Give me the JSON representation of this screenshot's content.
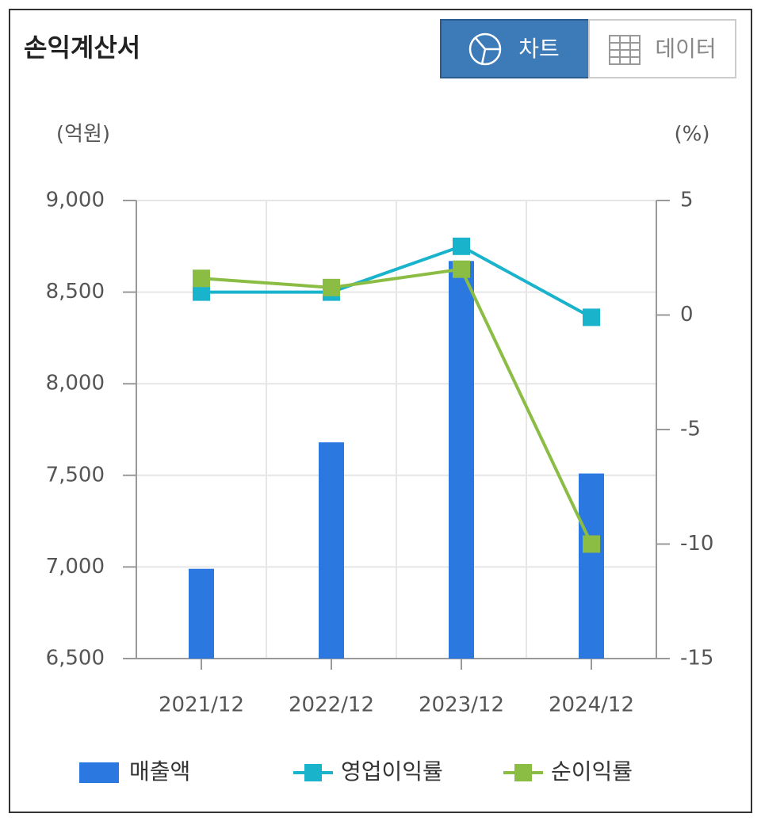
{
  "title": "손익계산서",
  "tabs": [
    "차트",
    "데이터"
  ],
  "chart_data": {
    "type": "bar",
    "y_unit": "(억원)",
    "y2_unit": "(%)",
    "categories": [
      "2021/12",
      "2022/12",
      "2023/12",
      "2024/12"
    ],
    "series": [
      {
        "name": "매출액",
        "type": "bar",
        "color": "#2a78e0",
        "values": [
          6990,
          7680,
          8670,
          7510
        ]
      },
      {
        "name": "영업이익률",
        "type": "line",
        "axis": "y2",
        "color": "#1ab3cc",
        "values": [
          1.0,
          1.0,
          3.0,
          -0.1
        ]
      },
      {
        "name": "순이익률",
        "type": "line",
        "axis": "y2",
        "color": "#8bbd45",
        "values": [
          1.6,
          1.2,
          2.0,
          -10.0
        ]
      }
    ],
    "ylim": [
      6500,
      9000
    ],
    "yticks": [
      {
        "value": 6500,
        "label": "6,500"
      },
      {
        "value": 7000,
        "label": "7,000"
      },
      {
        "value": 7500,
        "label": "7,500"
      },
      {
        "value": 8000,
        "label": "8,000"
      },
      {
        "value": 8500,
        "label": "8,500"
      },
      {
        "value": 9000,
        "label": "9,000"
      }
    ],
    "y2lim": [
      -15,
      5
    ],
    "y2ticks": [
      -15,
      -10,
      -5,
      0,
      5
    ],
    "grid": true
  }
}
